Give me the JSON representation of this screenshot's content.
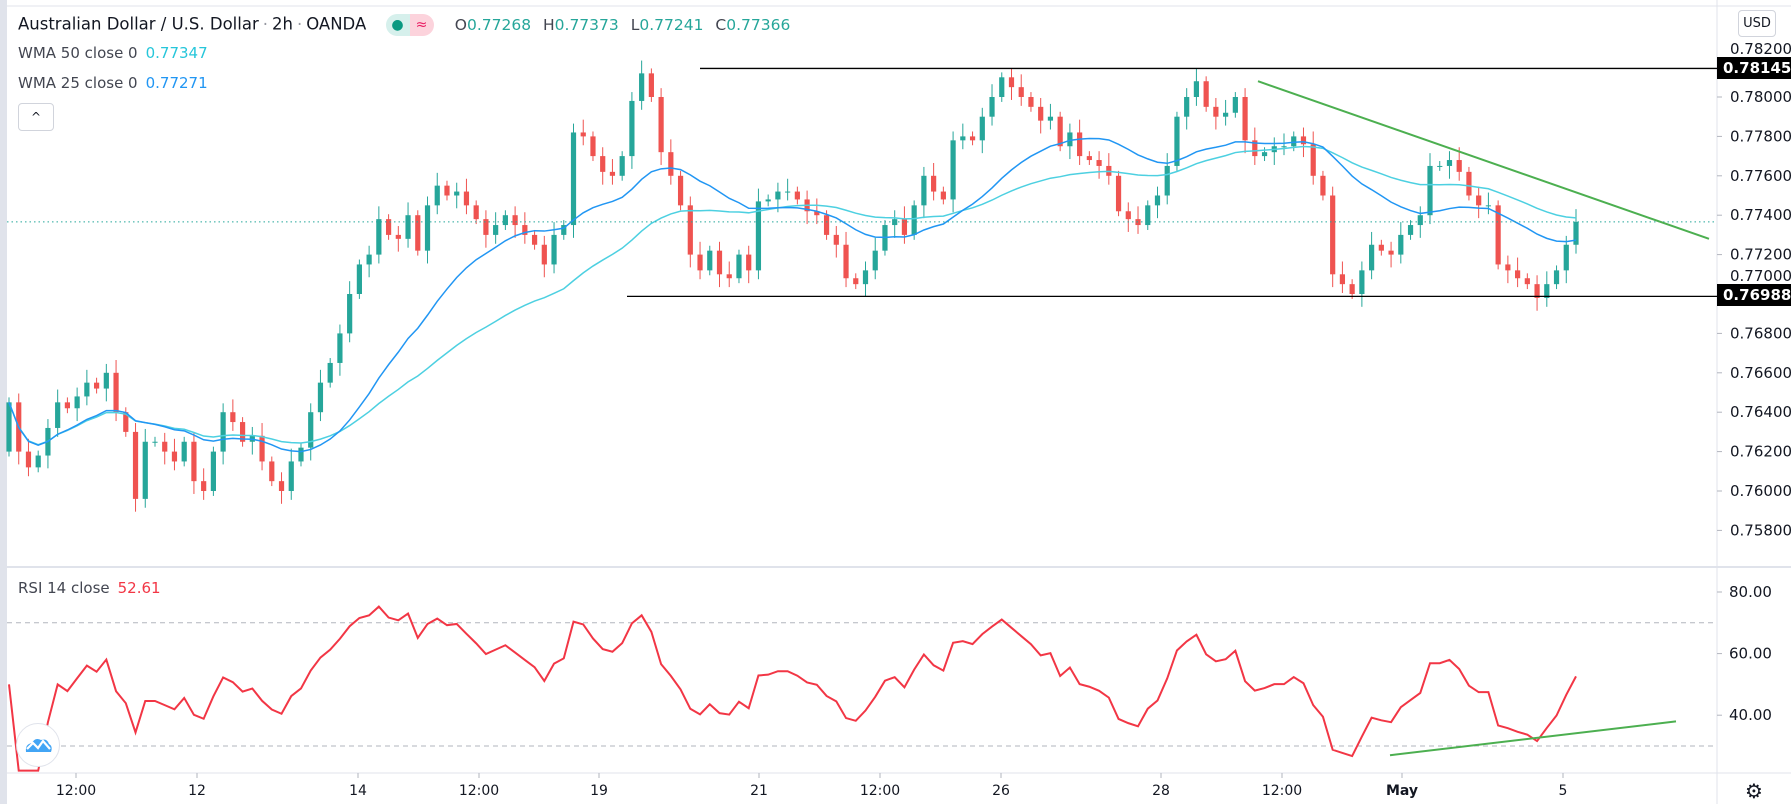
{
  "header": {
    "symbol": "Australian Dollar / U.S. Dollar",
    "interval": "2h",
    "exchange": "OANDA",
    "separator": "·",
    "badge_icons": [
      "market-open-dot-icon",
      "approx-data-icon"
    ],
    "badge_dot": "●",
    "badge_approx": "≈",
    "ohlc": {
      "o_label": "O",
      "o": "0.77268",
      "h_label": "H",
      "h": "0.77373",
      "l_label": "L",
      "l": "0.77241",
      "c_label": "C",
      "c": "0.77366"
    }
  },
  "indicators": {
    "wma50": {
      "label": "WMA 50 close 0",
      "value": "0.77347",
      "color": "#4dd0e1"
    },
    "wma25": {
      "label": "WMA 25 close 0",
      "value": "0.77271",
      "color": "#2196f3"
    },
    "rsi": {
      "label": "RSI 14 close",
      "value": "52.61",
      "color": "#f23645"
    }
  },
  "controls": {
    "collapse_icon": "^",
    "currency": "USD",
    "gear_icon": "⚙"
  },
  "price_labels": {
    "resistance": "0.78145",
    "support": "0.76988"
  },
  "colors": {
    "up": "#26a69a",
    "down": "#ef5350",
    "trendline": "#4caf50",
    "level": "#000000",
    "last_price": "#26a69a"
  },
  "chart_data": [
    {
      "type": "candlestick",
      "title": "Australian Dollar / U.S. Dollar · 2h · OANDA",
      "ylim": [
        0.7575,
        0.783
      ],
      "yticks": [
        "0.78200",
        "0.78000",
        "0.77800",
        "0.77600",
        "0.77400",
        "0.77200",
        "0.77000",
        "0.76800",
        "0.76600",
        "0.76400",
        "0.76200",
        "0.76000",
        "0.75800"
      ],
      "xticks": [
        "12:00",
        "12",
        "14",
        "12:00",
        "19",
        "21",
        "12:00",
        "26",
        "28",
        "12:00",
        "May",
        "5"
      ],
      "last_price": 0.77366,
      "horizontal_levels": [
        0.78145,
        0.76988
      ],
      "trendline": {
        "from": 0.7808,
        "to": 0.7728
      },
      "closes": [
        0.7645,
        0.762,
        0.7612,
        0.7618,
        0.7632,
        0.7645,
        0.7642,
        0.7648,
        0.7655,
        0.7652,
        0.766,
        0.764,
        0.763,
        0.7596,
        0.7625,
        0.7625,
        0.762,
        0.7615,
        0.7625,
        0.7605,
        0.76,
        0.762,
        0.764,
        0.7635,
        0.7625,
        0.7628,
        0.7615,
        0.7605,
        0.76,
        0.7615,
        0.7622,
        0.764,
        0.7655,
        0.7665,
        0.768,
        0.77,
        0.7715,
        0.772,
        0.7738,
        0.773,
        0.7728,
        0.774,
        0.7722,
        0.7745,
        0.7755,
        0.775,
        0.7752,
        0.7745,
        0.7738,
        0.773,
        0.7735,
        0.774,
        0.7735,
        0.773,
        0.7725,
        0.7715,
        0.773,
        0.7735,
        0.7782,
        0.778,
        0.777,
        0.7762,
        0.776,
        0.777,
        0.7798,
        0.7812,
        0.78,
        0.7772,
        0.776,
        0.7745,
        0.772,
        0.7712,
        0.7722,
        0.771,
        0.7708,
        0.772,
        0.7712,
        0.7747,
        0.7748,
        0.7752,
        0.7752,
        0.7748,
        0.7742,
        0.774,
        0.773,
        0.7725,
        0.7708,
        0.7705,
        0.7712,
        0.7722,
        0.7735,
        0.7738,
        0.773,
        0.7745,
        0.776,
        0.7752,
        0.7748,
        0.7778,
        0.778,
        0.7778,
        0.779,
        0.78,
        0.781,
        0.7805,
        0.78,
        0.7795,
        0.7788,
        0.779,
        0.7775,
        0.7782,
        0.777,
        0.7768,
        0.7765,
        0.776,
        0.7742,
        0.7738,
        0.7735,
        0.7745,
        0.775,
        0.7765,
        0.779,
        0.78,
        0.7808,
        0.7795,
        0.779,
        0.7792,
        0.78,
        0.7778,
        0.777,
        0.7772,
        0.7775,
        0.7775,
        0.778,
        0.7776,
        0.776,
        0.775,
        0.771,
        0.7705,
        0.77,
        0.7712,
        0.7725,
        0.7722,
        0.772,
        0.773,
        0.7735,
        0.774,
        0.7765,
        0.7765,
        0.7768,
        0.7762,
        0.775,
        0.7745,
        0.7745,
        0.7715,
        0.7712,
        0.7708,
        0.7705,
        0.7698,
        0.7705,
        0.7712,
        0.7725,
        0.77366
      ]
    },
    {
      "type": "line",
      "title": "RSI 14 close",
      "ylim": [
        22,
        88
      ],
      "yticks": [
        "80.00",
        "60.00",
        "40.00"
      ],
      "bands": [
        70,
        30
      ],
      "last_value": 52.61,
      "trendline": {
        "from": 27,
        "to": 38
      }
    }
  ]
}
